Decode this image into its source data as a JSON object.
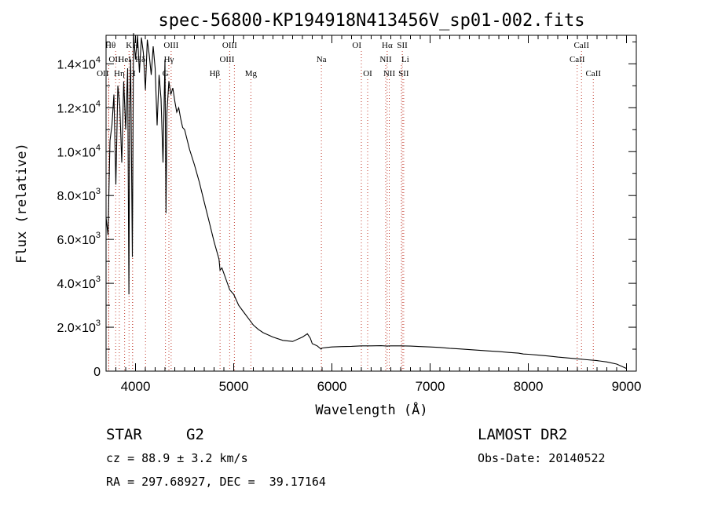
{
  "chart_data": {
    "type": "line",
    "title": "spec-56800-KP194918N413456V_sp01-002.fits",
    "xlabel": "Wavelength (Å)",
    "ylabel": "Flux (relative)",
    "xlim": [
      3700,
      9100
    ],
    "ylim": [
      0,
      15300
    ],
    "x_ticks": [
      {
        "value": 4000,
        "label": "4000"
      },
      {
        "value": 5000,
        "label": "5000"
      },
      {
        "value": 6000,
        "label": "6000"
      },
      {
        "value": 7000,
        "label": "7000"
      },
      {
        "value": 8000,
        "label": "8000"
      },
      {
        "value": 9000,
        "label": "9000"
      }
    ],
    "y_ticks": [
      {
        "value": 0,
        "mantissa": "0",
        "exponent": ""
      },
      {
        "value": 2000,
        "mantissa": "2.0×10",
        "exponent": "3"
      },
      {
        "value": 4000,
        "mantissa": "4.0×10",
        "exponent": "3"
      },
      {
        "value": 6000,
        "mantissa": "6.0×10",
        "exponent": "3"
      },
      {
        "value": 8000,
        "mantissa": "8.0×10",
        "exponent": "3"
      },
      {
        "value": 10000,
        "mantissa": "1.0×10",
        "exponent": "4"
      },
      {
        "value": 12000,
        "mantissa": "1.2×10",
        "exponent": "4"
      },
      {
        "value": 14000,
        "mantissa": "1.4×10",
        "exponent": "4"
      }
    ],
    "series": [
      {
        "name": "spectrum",
        "x": [
          3700,
          3720,
          3740,
          3760,
          3780,
          3800,
          3820,
          3840,
          3860,
          3880,
          3900,
          3920,
          3933,
          3940,
          3950,
          3968,
          3980,
          4000,
          4020,
          4040,
          4060,
          4080,
          4101,
          4120,
          4140,
          4160,
          4180,
          4200,
          4220,
          4240,
          4260,
          4280,
          4300,
          4310,
          4320,
          4340,
          4360,
          4380,
          4400,
          4420,
          4440,
          4460,
          4480,
          4500,
          4550,
          4600,
          4650,
          4700,
          4750,
          4800,
          4850,
          4861,
          4880,
          4920,
          4960,
          5000,
          5050,
          5100,
          5150,
          5200,
          5250,
          5300,
          5400,
          5500,
          5600,
          5700,
          5750,
          5780,
          5800,
          5850,
          5890,
          5900,
          5950,
          6000,
          6100,
          6200,
          6300,
          6400,
          6500,
          6563,
          6600,
          6700,
          6800,
          6900,
          7000,
          7100,
          7200,
          7300,
          7400,
          7500,
          7600,
          7700,
          7800,
          7900,
          7950,
          8000,
          8100,
          8200,
          8300,
          8400,
          8500,
          8600,
          8700,
          8800,
          8900,
          8960,
          9000
        ],
        "y": [
          7000,
          6200,
          10500,
          11200,
          12600,
          8500,
          13000,
          12100,
          9500,
          13200,
          11000,
          13800,
          3500,
          11800,
          14200,
          5200,
          15400,
          14200,
          15300,
          13600,
          15200,
          14500,
          12800,
          15100,
          14400,
          13500,
          14800,
          13800,
          11200,
          13500,
          12400,
          9500,
          14200,
          7200,
          11800,
          13200,
          12600,
          12900,
          12300,
          11800,
          12000,
          11500,
          11100,
          11000,
          10100,
          9400,
          8600,
          7700,
          6800,
          5900,
          5100,
          4600,
          4700,
          4200,
          3700,
          3500,
          3000,
          2700,
          2400,
          2100,
          1900,
          1750,
          1550,
          1400,
          1350,
          1550,
          1700,
          1500,
          1250,
          1150,
          1000,
          1050,
          1080,
          1100,
          1120,
          1130,
          1150,
          1150,
          1160,
          1140,
          1150,
          1150,
          1140,
          1120,
          1100,
          1080,
          1040,
          1010,
          980,
          950,
          920,
          890,
          850,
          820,
          780,
          770,
          730,
          690,
          640,
          600,
          560,
          520,
          480,
          420,
          320,
          200,
          120
        ]
      }
    ],
    "spectral_lines": [
      {
        "label": "Hθ",
        "x": 3798,
        "row": 0,
        "anchor": "end"
      },
      {
        "label": "K",
        "x": 3934,
        "row": 0,
        "anchor": "middle"
      },
      {
        "label": "H",
        "x": 3970,
        "row": 0,
        "anchor": "start"
      },
      {
        "label": "OIII",
        "x": 4363,
        "row": 0,
        "anchor": "middle"
      },
      {
        "label": "OIII",
        "x": 4959,
        "row": 0,
        "anchor": "middle"
      },
      {
        "label": "OI",
        "x": 6300,
        "row": 0,
        "anchor": "end"
      },
      {
        "label": "Hα",
        "x": 6563,
        "row": 0,
        "anchor": "middle"
      },
      {
        "label": "SII",
        "x": 6717,
        "row": 0,
        "anchor": "middle"
      },
      {
        "label": "CaII",
        "x": 8542,
        "row": 0,
        "anchor": "middle"
      },
      {
        "label": "OII",
        "x": 3727,
        "row": 1,
        "anchor": "start"
      },
      {
        "label": "HeI",
        "x": 3889,
        "row": 1,
        "anchor": "middle"
      },
      {
        "label": "Hδ",
        "x": 4102,
        "row": 1,
        "anchor": "end"
      },
      {
        "label": "Hγ",
        "x": 4340,
        "row": 1,
        "anchor": "middle"
      },
      {
        "label": "OIII",
        "x": 5007,
        "row": 1,
        "anchor": "end"
      },
      {
        "label": "Na",
        "x": 5893,
        "row": 1,
        "anchor": "middle"
      },
      {
        "label": "NII",
        "x": 6548,
        "row": 1,
        "anchor": "middle"
      },
      {
        "label": "Li",
        "x": 6708,
        "row": 1,
        "anchor": "start"
      },
      {
        "label": "CaII",
        "x": 8498,
        "row": 1,
        "anchor": "middle"
      },
      {
        "label": "OII",
        "x": 3727,
        "row": 2,
        "anchor": "end"
      },
      {
        "label": "Hη",
        "x": 3835,
        "row": 2,
        "anchor": "middle"
      },
      {
        "label": "H",
        "x": 3970,
        "row": 2,
        "anchor": "middle"
      },
      {
        "label": "G",
        "x": 4305,
        "row": 2,
        "anchor": "middle"
      },
      {
        "label": "Hβ",
        "x": 4861,
        "row": 2,
        "anchor": "end"
      },
      {
        "label": "Mg",
        "x": 5175,
        "row": 2,
        "anchor": "middle"
      },
      {
        "label": "OI",
        "x": 6364,
        "row": 2,
        "anchor": "middle"
      },
      {
        "label": "NII",
        "x": 6584,
        "row": 2,
        "anchor": "middle"
      },
      {
        "label": "SII",
        "x": 6731,
        "row": 2,
        "anchor": "middle"
      },
      {
        "label": "CaII",
        "x": 8662,
        "row": 2,
        "anchor": "middle"
      }
    ]
  },
  "info": {
    "object_class": "STAR",
    "subclass": "G2",
    "survey": "LAMOST DR2",
    "cz": "cz = 88.9 ± 3.2 km/s",
    "obs_date": "Obs-Date: 20140522",
    "coords": "RA = 297.68927, DEC =  39.17164"
  }
}
